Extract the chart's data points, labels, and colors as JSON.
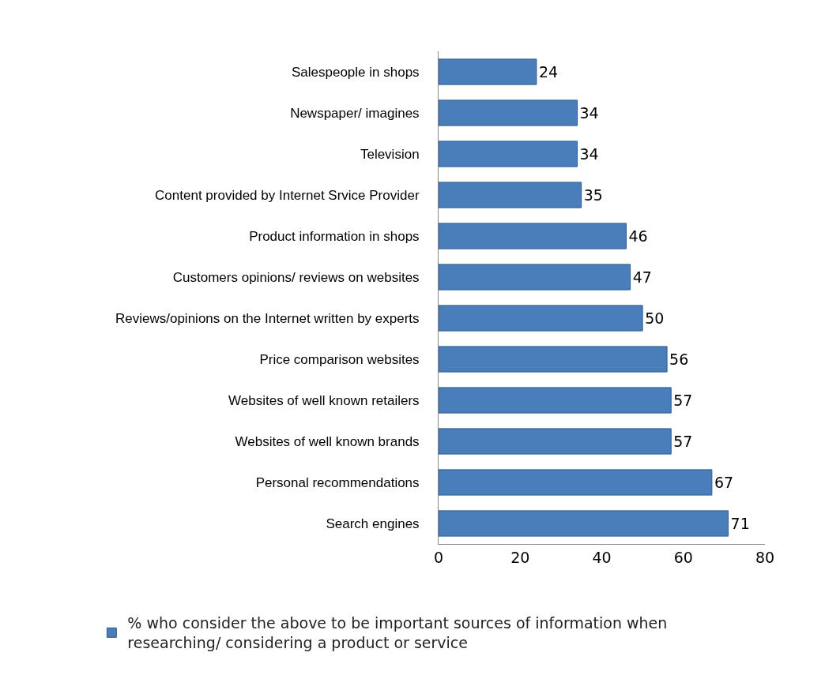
{
  "chart_data": {
    "type": "bar",
    "orientation": "horizontal",
    "categories": [
      "Salespeople in shops",
      "Newspaper/ imagines",
      "Television",
      "Content provided by Internet Srvice Provider",
      "Product information in shops",
      "Customers opinions/ reviews on websites",
      "Reviews/opinions on the Internet written by experts",
      "Price comparison websites",
      "Websites of well known retailers",
      "Websites of well known brands",
      "Personal recommendations",
      "Search engines"
    ],
    "series": [
      {
        "name": "% who consider the above to be important sources of information when researching/ considering a product or service",
        "color": "#4a7ebb",
        "values": [
          24,
          34,
          34,
          35,
          46,
          47,
          50,
          56,
          57,
          57,
          67,
          71
        ]
      }
    ],
    "xlim": [
      0,
      80
    ],
    "xticks": [
      0,
      20,
      40,
      60,
      80
    ],
    "data_labels": true,
    "legend": "bottom"
  }
}
